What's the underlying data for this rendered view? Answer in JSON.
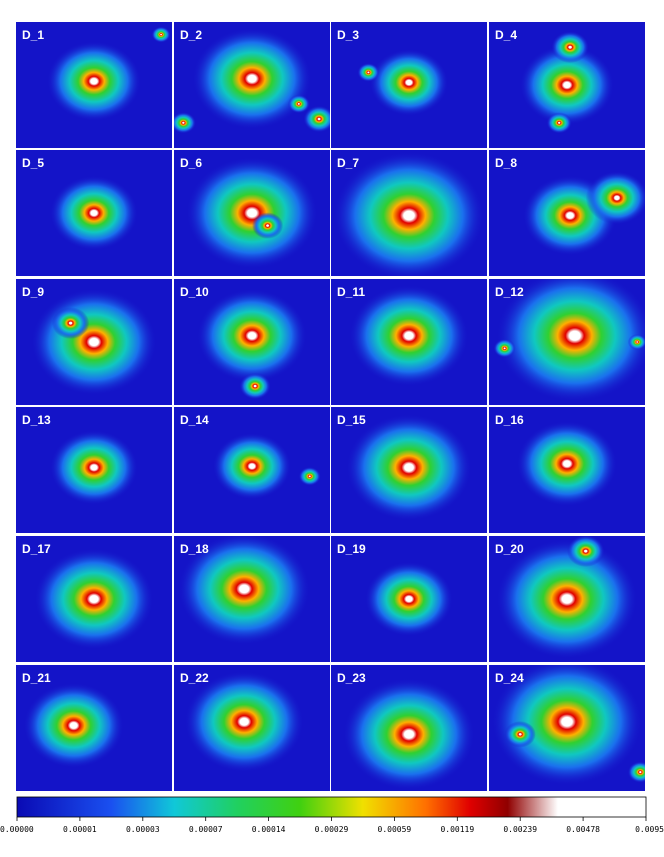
{
  "panels": [
    "D_1",
    "D_2",
    "D_3",
    "D_4",
    "D_5",
    "D_6",
    "D_7",
    "D_8",
    "D_9",
    "D_10",
    "D_11",
    "D_12",
    "D_13",
    "D_14",
    "D_15",
    "D_16",
    "D_17",
    "D_18",
    "D_19",
    "D_20",
    "D_21",
    "D_22",
    "D_23",
    "D_24"
  ],
  "colorbar": {
    "ticks": [
      "0.00000",
      "0.00001",
      "0.00003",
      "0.00007",
      "0.00014",
      "0.00029",
      "0.00059",
      "0.00119",
      "0.00239",
      "0.00478",
      "0.0095"
    ]
  }
}
